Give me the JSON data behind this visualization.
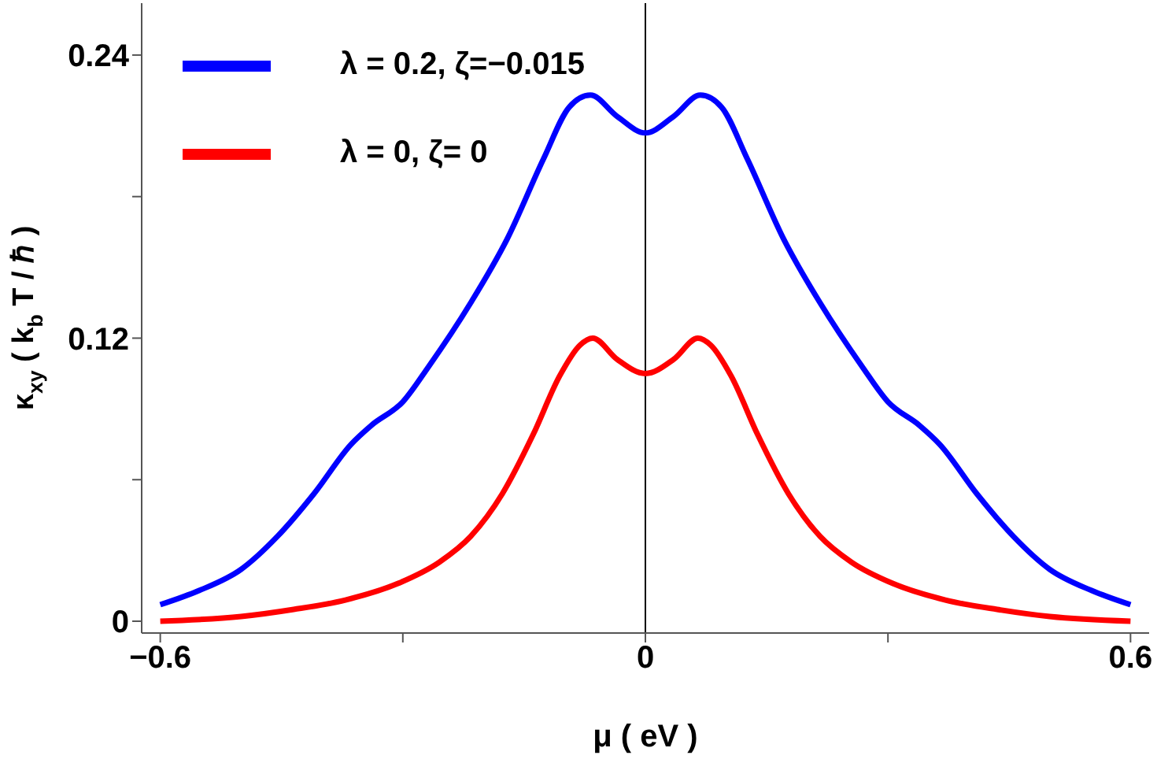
{
  "chart_data": {
    "type": "line",
    "xlabel": "μ ( eV )",
    "ylabel": "κ$_{xy}$ ( k$_{b}$ T / ℏ )",
    "xlim": [
      -0.623,
      0.623
    ],
    "ylim": [
      -0.005,
      0.262
    ],
    "xticks": [
      -0.6,
      {
        "value": -0.3,
        "label": null
      },
      0,
      {
        "value": 0.3,
        "label": null
      },
      0.6
    ],
    "yticks": [
      0,
      {
        "value": 0.06,
        "label": null
      },
      0.12,
      {
        "value": 0.18,
        "label": null
      },
      0.24
    ],
    "grid": false,
    "legend": "top left",
    "marker": "none",
    "line_style": "solid",
    "ref_lines": [
      {
        "axis": "x",
        "value": 0,
        "color": "#000000"
      }
    ],
    "series": [
      {
        "name": "λ = 0.2, ζ=−0.015",
        "color": "#0000ff",
        "x": [
          -0.6,
          -0.552,
          -0.5,
          -0.455,
          -0.41,
          -0.364,
          -0.339,
          -0.3,
          -0.268,
          -0.216,
          -0.171,
          -0.126,
          -0.094,
          -0.068,
          -0.035,
          0,
          0.035,
          0.068,
          0.094,
          0.126,
          0.171,
          0.216,
          0.268,
          0.3,
          0.339,
          0.364,
          0.41,
          0.455,
          0.5,
          0.552,
          0.6
        ],
        "values": [
          0.007,
          0.013,
          0.022,
          0.036,
          0.054,
          0.075,
          0.083,
          0.093,
          0.108,
          0.135,
          0.162,
          0.196,
          0.218,
          0.223,
          0.214,
          0.207,
          0.214,
          0.223,
          0.218,
          0.196,
          0.162,
          0.135,
          0.108,
          0.093,
          0.083,
          0.075,
          0.054,
          0.036,
          0.022,
          0.013,
          0.007
        ]
      },
      {
        "name": "λ = 0, ζ= 0",
        "color": "#ff0000",
        "x": [
          -0.6,
          -0.5,
          -0.435,
          -0.371,
          -0.306,
          -0.255,
          -0.216,
          -0.177,
          -0.139,
          -0.106,
          -0.081,
          -0.065,
          -0.035,
          0,
          0.035,
          0.065,
          0.081,
          0.106,
          0.139,
          0.177,
          0.216,
          0.255,
          0.306,
          0.371,
          0.435,
          0.5,
          0.6
        ],
        "values": [
          0,
          0.002,
          0.005,
          0.009,
          0.016,
          0.025,
          0.036,
          0.054,
          0.079,
          0.104,
          0.117,
          0.12,
          0.111,
          0.105,
          0.111,
          0.12,
          0.117,
          0.104,
          0.079,
          0.054,
          0.036,
          0.025,
          0.016,
          0.009,
          0.005,
          0.002,
          0
        ]
      }
    ]
  }
}
